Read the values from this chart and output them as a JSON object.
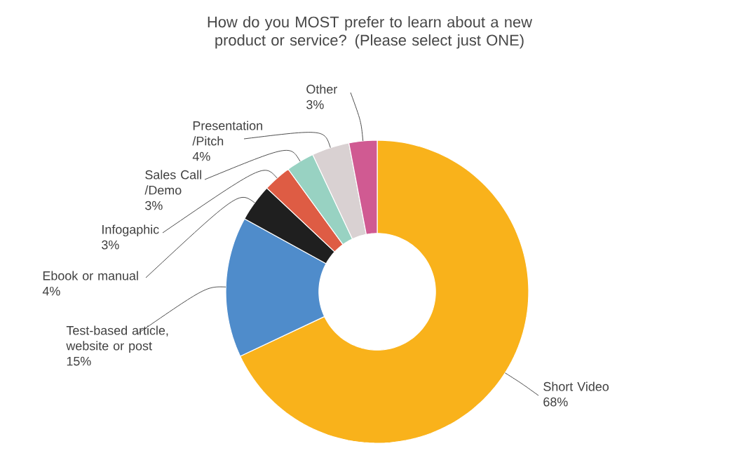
{
  "chart_data": {
    "type": "donut",
    "title": "How do you MOST prefer to learn about a new product or service? (Please select just ONE)",
    "categories": [
      "Short Video",
      "Test-based article, website or post",
      "Ebook or manual",
      "Infogaphic",
      "Sales Call /Demo",
      "Presentation /Pitch",
      "Other"
    ],
    "values": [
      68,
      15,
      4,
      3,
      3,
      4,
      3
    ],
    "value_labels": [
      "68%",
      "15%",
      "4%",
      "3%",
      "3%",
      "4%",
      "3%"
    ],
    "colors": [
      "#f9b21b",
      "#4f8ccb",
      "#1f1f1f",
      "#de5c44",
      "#98d2c2",
      "#d9d1d2",
      "#d05a92"
    ]
  }
}
